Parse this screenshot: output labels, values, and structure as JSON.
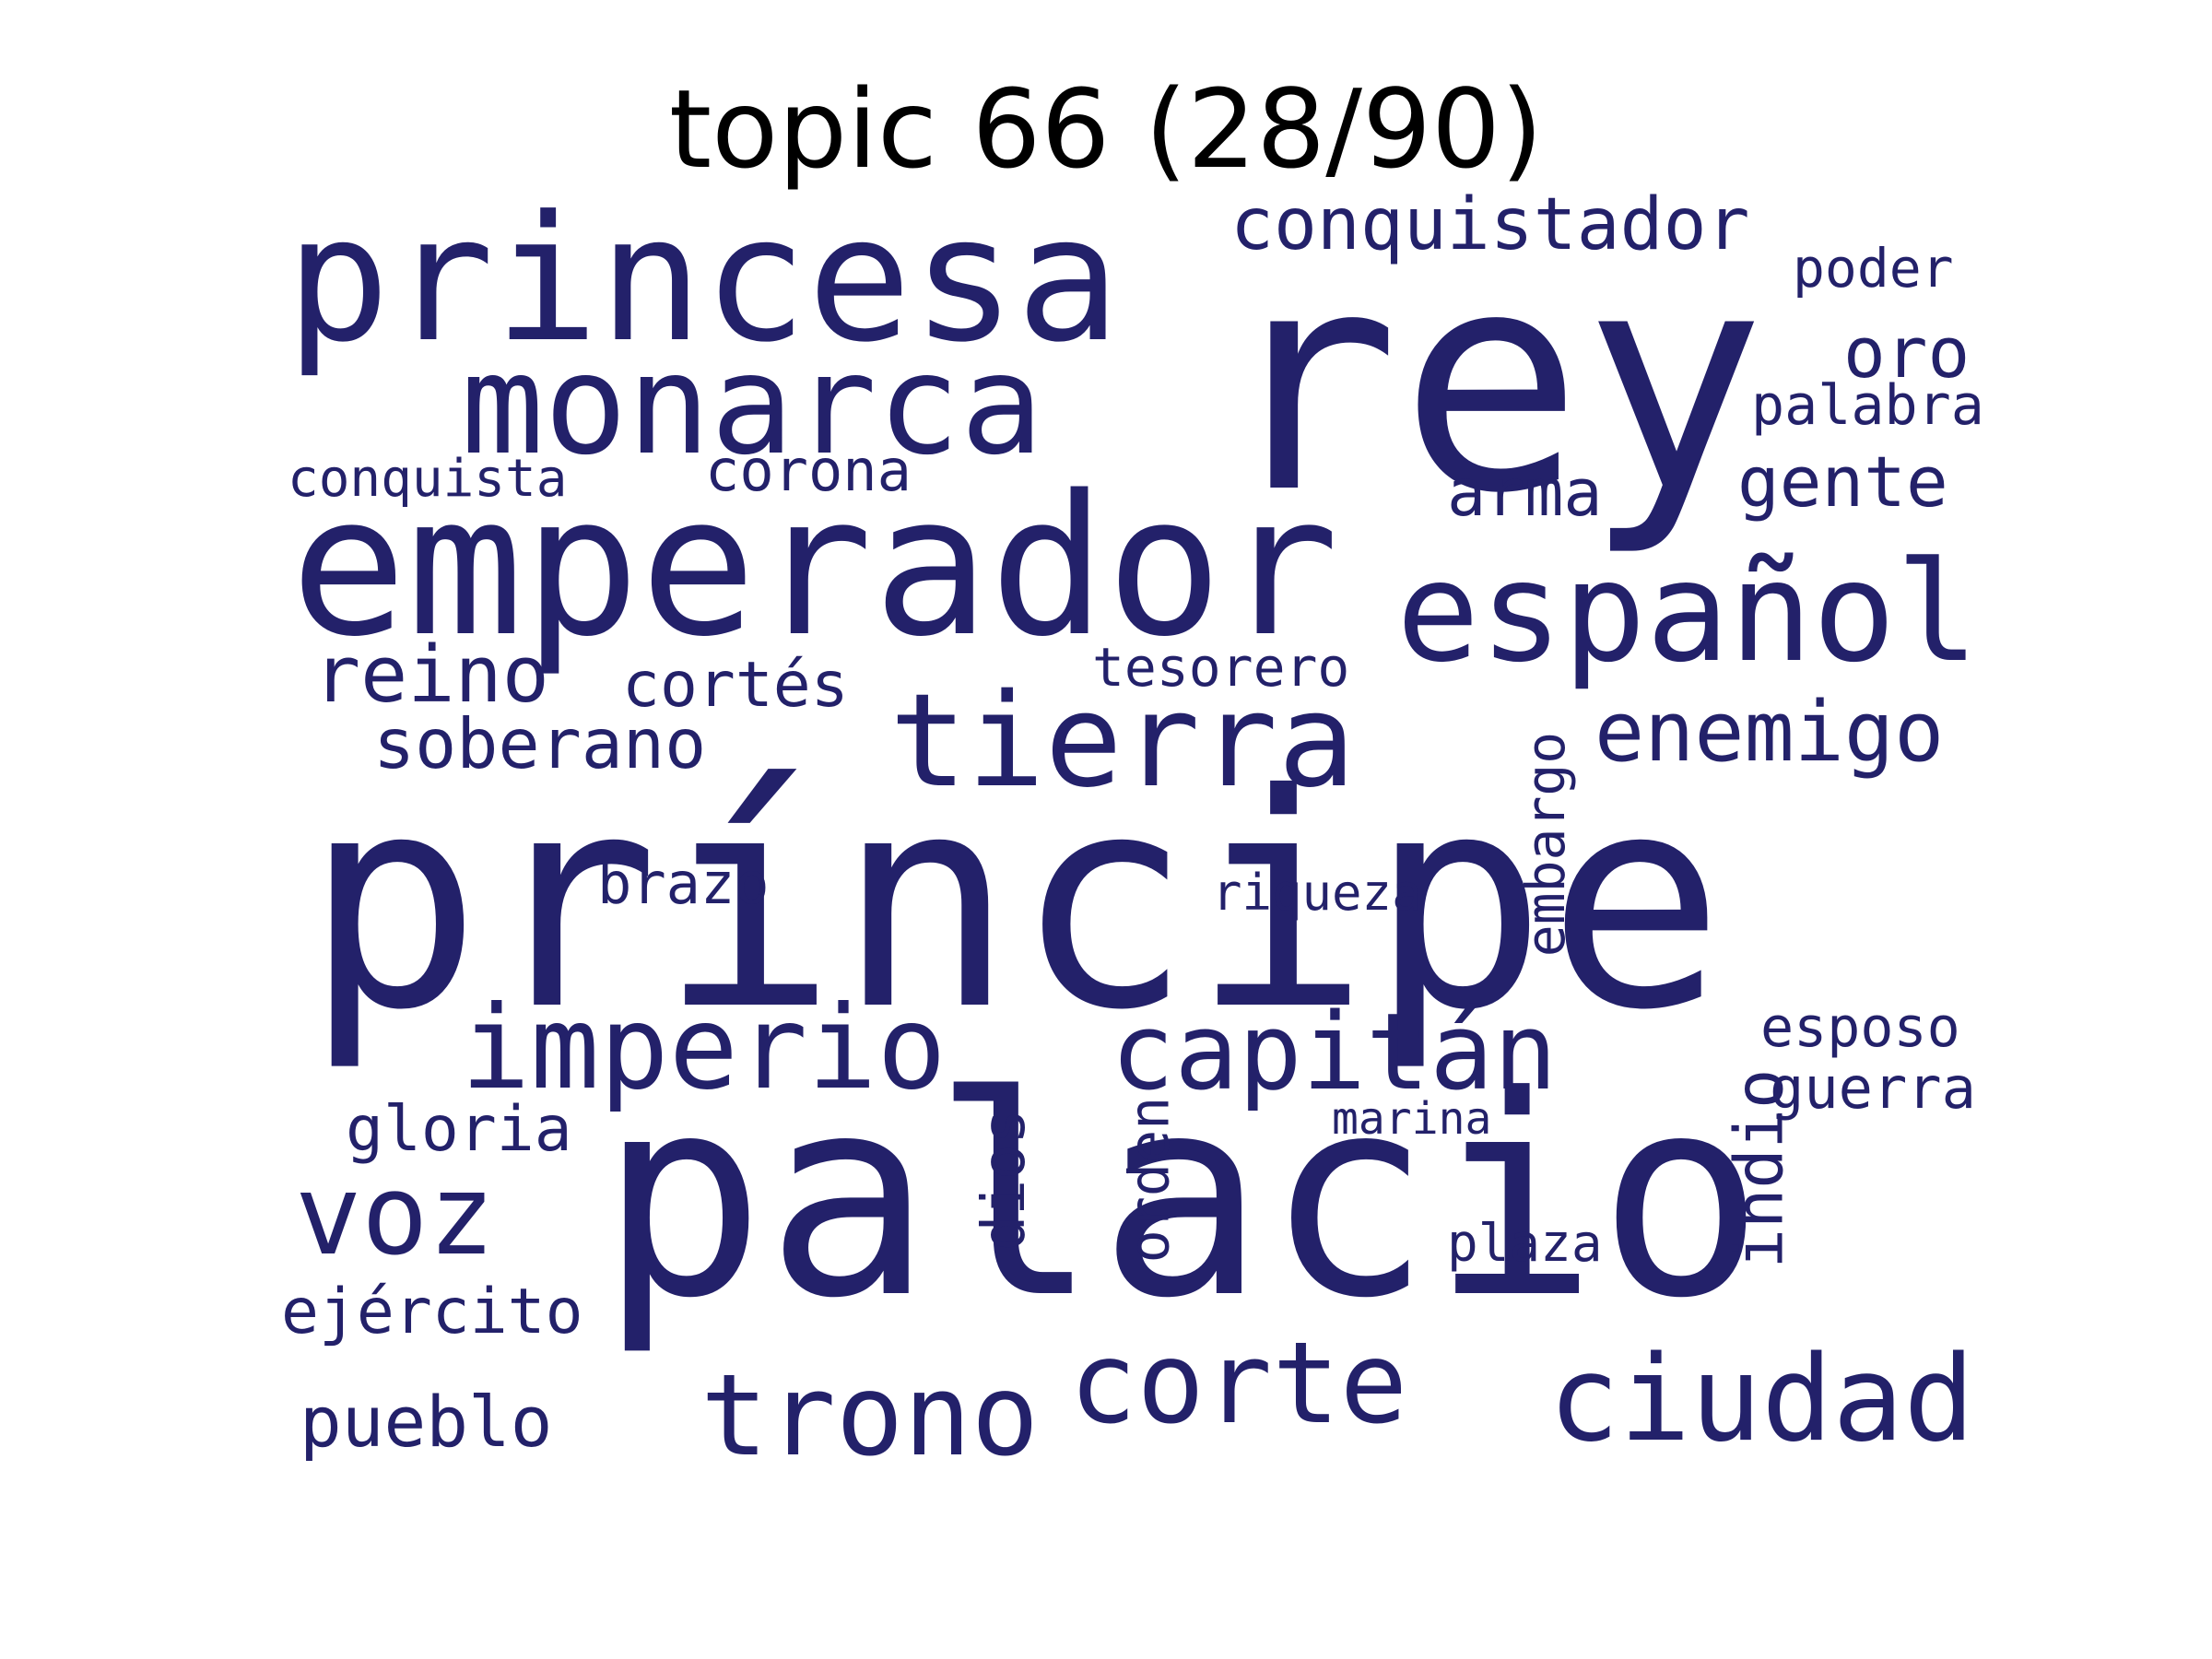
{
  "title": "topic 66 (28/90)",
  "word_color": "#23216a",
  "words": {
    "principe": "príncipe",
    "palacio": "palacio",
    "rey": "rey",
    "emperador": "emperador",
    "princesa": "princesa",
    "monarca": "monarca",
    "espanol": "español",
    "tierra": "tierra",
    "imperio": "imperio",
    "capitan": "capitán",
    "corte": "corte",
    "ciudad": "ciudad",
    "trono": "trono",
    "voz": "voz",
    "conquistador": "conquistador",
    "enemigo": "enemigo",
    "reino": "reino",
    "soberano": "soberano",
    "cortes": "cortés",
    "corona": "corona",
    "conquista": "conquista",
    "tesorero": "tesorero",
    "arma": "arma",
    "gente": "gente",
    "oro": "oro",
    "palabra": "palabra",
    "poder": "poder",
    "embargo": "embargo",
    "brazo": "brazo",
    "riqueza": "riqueza",
    "esposo": "esposo",
    "guerra": "guerra",
    "indio": "indio",
    "gloria": "gloria",
    "marina": "marina",
    "dios": "dios",
    "orden": "orden",
    "plaza": "plaza",
    "ejercito": "ejército",
    "pueblo": "pueblo"
  }
}
